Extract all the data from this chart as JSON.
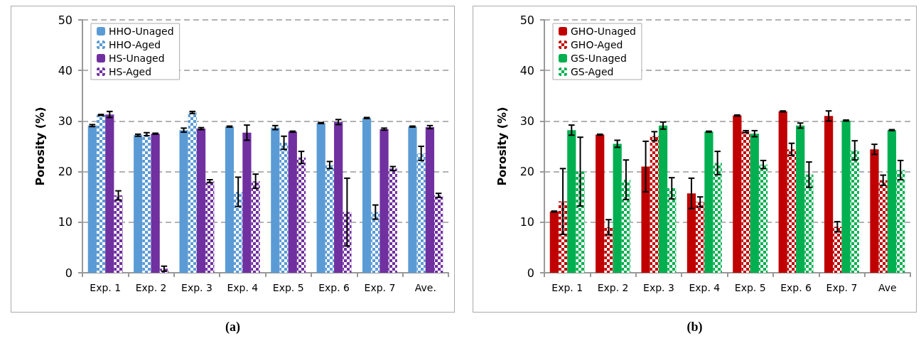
{
  "chart_data": [
    {
      "type": "bar",
      "title": "(a)",
      "ylabel": "Porosity (%)",
      "categories": [
        "Exp. 1",
        "Exp. 2",
        "Exp. 3",
        "Exp. 4",
        "Exp. 5",
        "Exp. 6",
        "Exp. 7",
        "Ave."
      ],
      "ylim": [
        0,
        50
      ],
      "yticks": [
        0,
        10,
        20,
        30,
        40,
        50
      ],
      "grid": "y",
      "legend": "top left",
      "series": [
        {
          "name": "HHO-Unaged",
          "color": "#5b9bd5",
          "values": [
            29.1,
            27.2,
            28.2,
            28.9,
            28.7,
            29.6,
            30.6,
            28.9
          ],
          "errors": [
            0.2,
            0.2,
            0.4,
            0.1,
            0.4,
            0.1,
            0.1,
            0.1
          ]
        },
        {
          "name": "HHO-Aged",
          "color": "#5b9bd5",
          "values": [
            31.2,
            27.4,
            31.7,
            16.0,
            25.7,
            21.3,
            12.0,
            23.6
          ],
          "errors": [
            0.1,
            0.3,
            0.2,
            2.9,
            1.3,
            0.7,
            1.4,
            1.4
          ]
        },
        {
          "name": "HS-Unaged",
          "color": "#7030a0",
          "values": [
            31.3,
            27.5,
            28.5,
            27.7,
            27.9,
            29.8,
            28.4,
            28.8
          ],
          "errors": [
            0.6,
            0.1,
            0.2,
            1.5,
            0.1,
            0.5,
            0.2,
            0.3
          ]
        },
        {
          "name": "HS-Aged",
          "color": "#7030a0",
          "values": [
            15.3,
            0.8,
            18.1,
            18.1,
            22.8,
            12.0,
            20.6,
            15.3
          ],
          "errors": [
            0.9,
            0.5,
            0.3,
            1.4,
            1.2,
            6.7,
            0.4,
            0.4
          ]
        }
      ]
    },
    {
      "type": "bar",
      "title": "(b)",
      "ylabel": "Porosity (%)",
      "categories": [
        "Exp. 1",
        "Exp. 2",
        "Exp. 3",
        "Exp. 4",
        "Exp. 5",
        "Exp. 6",
        "Exp. 7",
        "Ave"
      ],
      "ylim": [
        0,
        50
      ],
      "yticks": [
        0,
        10,
        20,
        30,
        40,
        50
      ],
      "grid": "y",
      "legend": "top left",
      "series": [
        {
          "name": "GHO-Unaged",
          "color": "#c00000",
          "values": [
            12.1,
            27.3,
            21.0,
            15.7,
            31.1,
            31.9,
            31.0,
            24.4
          ],
          "errors": [
            0.1,
            0.1,
            5.0,
            3.0,
            0.1,
            0.1,
            1.0,
            1.0
          ]
        },
        {
          "name": "GHO-Aged",
          "color": "#c00000",
          "values": [
            14.1,
            9.0,
            27.0,
            14.0,
            27.9,
            24.4,
            9.1,
            18.3
          ],
          "errors": [
            6.5,
            1.5,
            0.9,
            1.0,
            0.2,
            1.2,
            1.0,
            1.0
          ]
        },
        {
          "name": "GS-Unaged",
          "color": "#00b050",
          "values": [
            28.2,
            25.5,
            29.1,
            27.9,
            27.5,
            29.1,
            30.1,
            28.2
          ],
          "errors": [
            1.0,
            0.7,
            0.7,
            0.1,
            0.6,
            0.5,
            0.1,
            0.1
          ]
        },
        {
          "name": "GS-Aged",
          "color": "#00b050",
          "values": [
            20.0,
            18.4,
            16.7,
            21.7,
            21.4,
            19.4,
            24.2,
            20.3
          ],
          "errors": [
            6.8,
            3.9,
            2.1,
            2.3,
            0.8,
            2.5,
            1.9,
            1.9
          ]
        }
      ]
    }
  ]
}
